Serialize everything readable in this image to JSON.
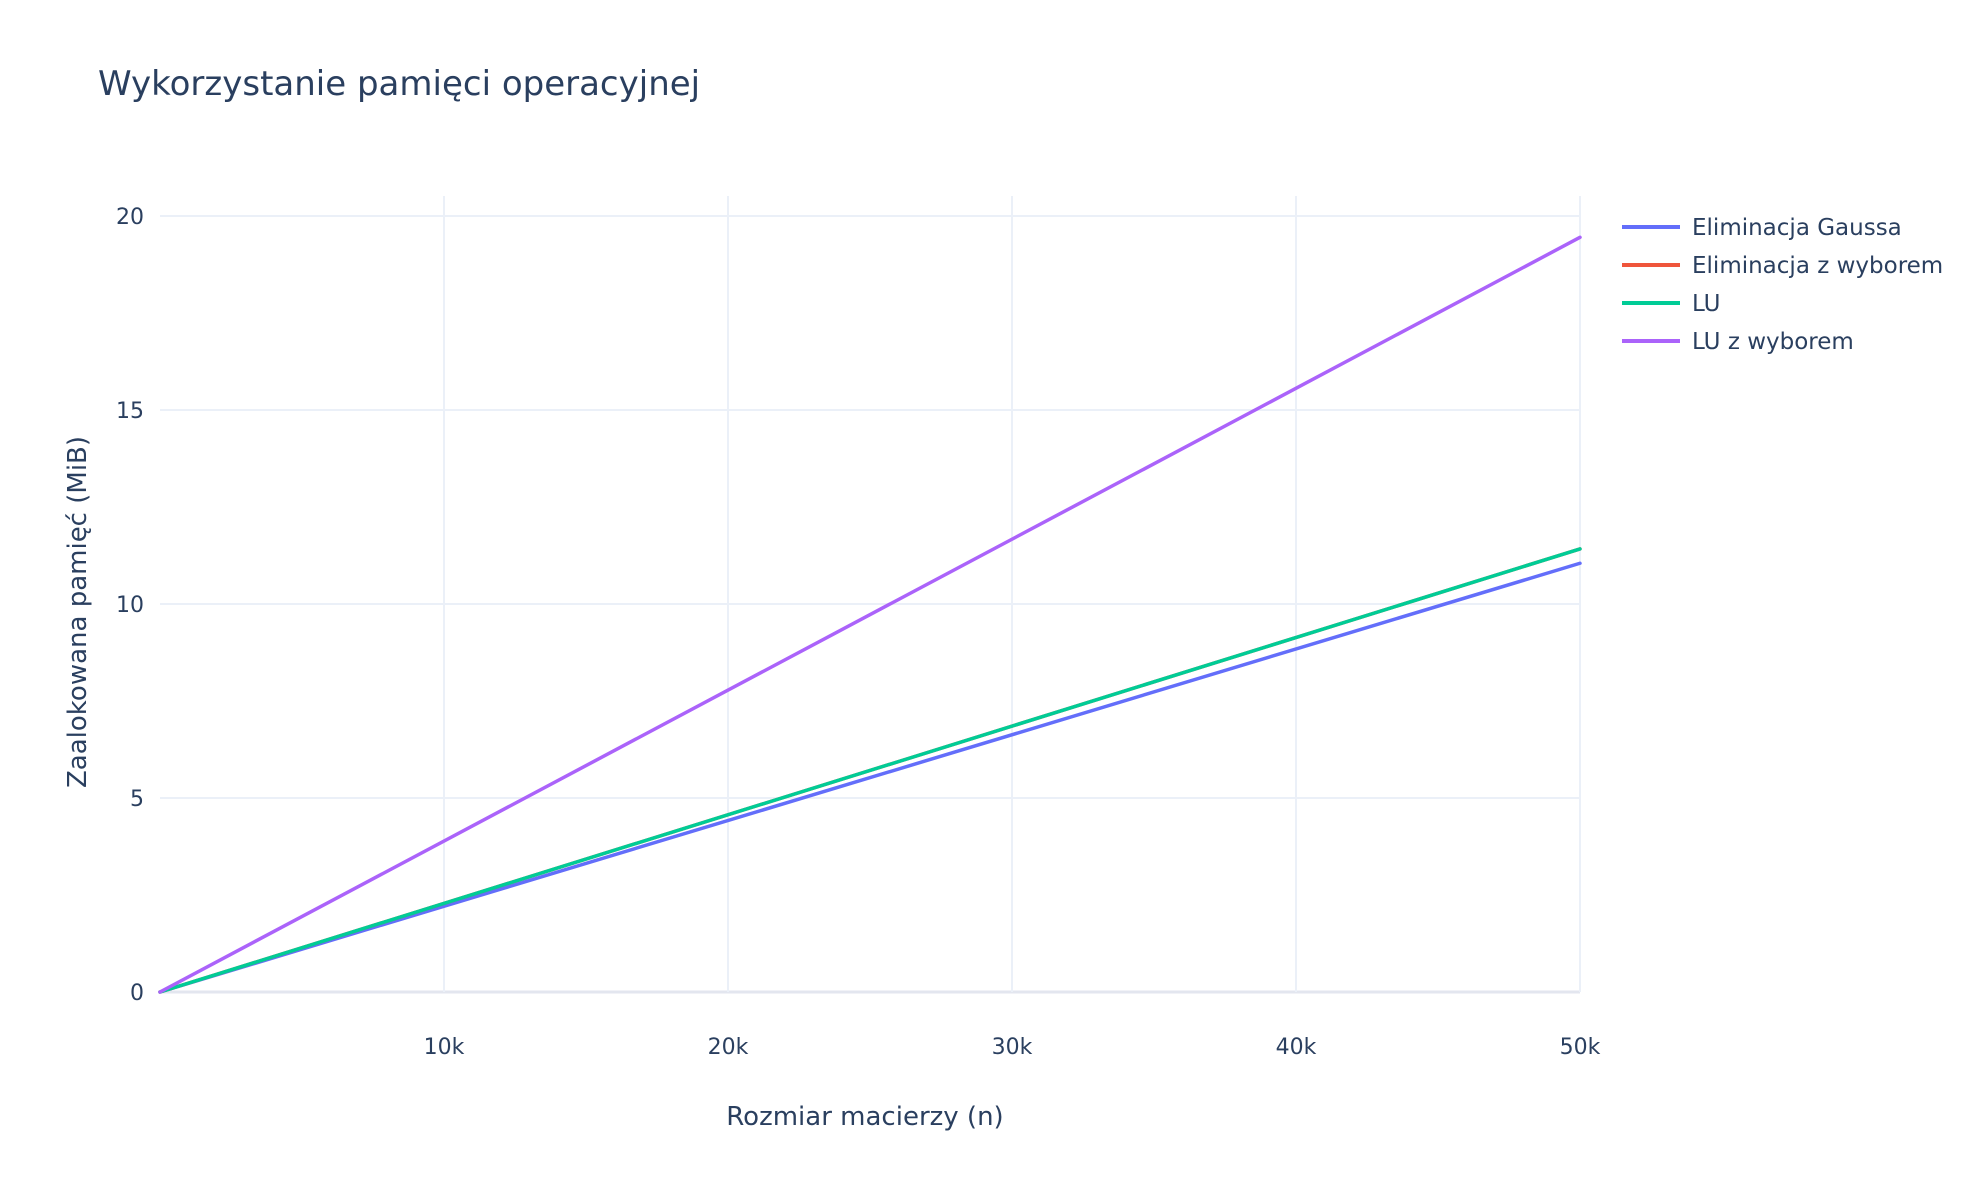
{
  "chart_data": {
    "type": "line",
    "title": "Wykorzystanie pamięci operacyjnej",
    "xlabel": "Rozmiar macierzy (n)",
    "ylabel": "Zaalokowana pamięć (MiB)",
    "xlim": [
      0,
      50000
    ],
    "ylim": [
      0,
      20
    ],
    "x_ticks": [
      10000,
      20000,
      30000,
      40000,
      50000
    ],
    "x_tick_labels": [
      "10k",
      "20k",
      "30k",
      "40k",
      "50k"
    ],
    "y_ticks": [
      0,
      5,
      10,
      15,
      20
    ],
    "y_tick_labels": [
      "0",
      "5",
      "10",
      "15",
      "20"
    ],
    "grid": true,
    "legend_position": "top-right",
    "series": [
      {
        "name": "Eliminacja Gaussa",
        "color": "#636efa",
        "x": [
          0,
          50000
        ],
        "y": [
          0,
          11.05
        ]
      },
      {
        "name": "Eliminacja z wyborem",
        "color": "#ef553b",
        "x": [
          0,
          50000
        ],
        "y": [
          0,
          11.42
        ]
      },
      {
        "name": "LU",
        "color": "#00cc96",
        "x": [
          0,
          50000
        ],
        "y": [
          0,
          11.42
        ]
      },
      {
        "name": "LU z wyborem",
        "color": "#ab63fa",
        "x": [
          0,
          50000
        ],
        "y": [
          0,
          19.45
        ]
      }
    ]
  }
}
